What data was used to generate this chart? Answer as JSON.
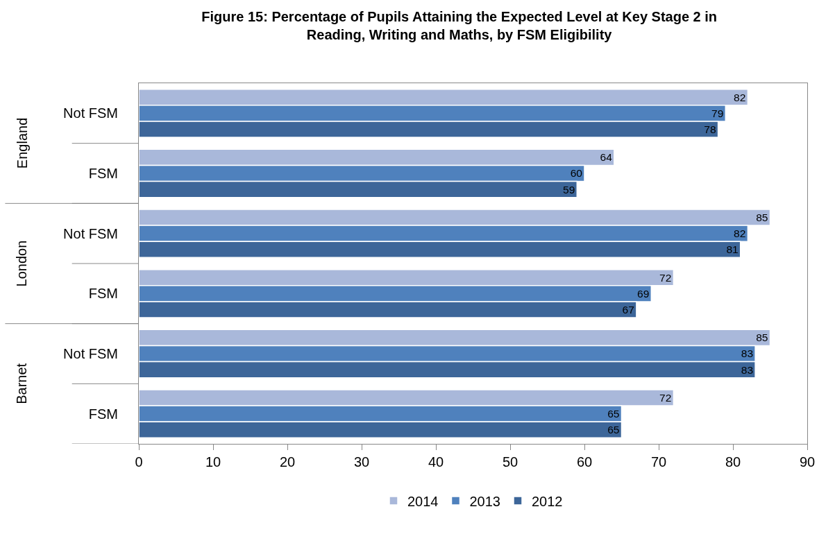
{
  "chart_data": {
    "type": "bar",
    "orientation": "horizontal",
    "title": "Figure 15: Percentage of Pupils Attaining the Expected Level at Key Stage 2 in\nReading, Writing and Maths, by FSM Eligibility",
    "categories": [
      "Not FSM",
      "FSM",
      "Not FSM",
      "FSM",
      "Not FSM",
      "FSM"
    ],
    "annotations": [
      "England",
      "London",
      "Barnet"
    ],
    "series": [
      {
        "name": "2014",
        "color": "#a9b8da",
        "values": [
          82,
          64,
          85,
          72,
          85,
          72
        ]
      },
      {
        "name": "2013",
        "color": "#4f81bd",
        "values": [
          79,
          60,
          82,
          69,
          83,
          65
        ]
      },
      {
        "name": "2012",
        "color": "#3d6699",
        "values": [
          78,
          59,
          81,
          67,
          83,
          65
        ]
      }
    ],
    "xlim": [
      0,
      90
    ],
    "xticks": [
      0,
      10,
      20,
      30,
      40,
      50,
      60,
      70,
      80,
      90
    ],
    "data_labels": true,
    "legend": "bottom"
  }
}
